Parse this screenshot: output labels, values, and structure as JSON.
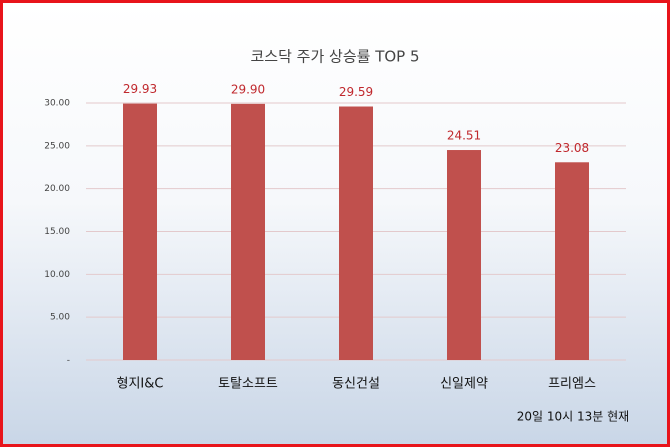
{
  "chart_data": {
    "type": "bar",
    "title": "코스닥 주가 상승률 TOP 5",
    "categories": [
      "형지I&C",
      "토탈소프트",
      "동신건설",
      "신일제약",
      "프리엠스"
    ],
    "values": [
      29.93,
      29.9,
      29.59,
      24.51,
      23.08
    ],
    "value_labels": [
      "29.93",
      "29.90",
      "29.59",
      "24.51",
      "23.08"
    ],
    "color": "#c0504d",
    "label_color": "#c0282d",
    "ylim": [
      0,
      30
    ],
    "yticks": [
      {
        "value": 0,
        "label": "-"
      },
      {
        "value": 5,
        "label": "5.00"
      },
      {
        "value": 10,
        "label": "10.00"
      },
      {
        "value": 15,
        "label": "15.00"
      },
      {
        "value": 20,
        "label": "20.00"
      },
      {
        "value": 25,
        "label": "25.00"
      },
      {
        "value": 30,
        "label": "30.00"
      }
    ],
    "grid": true,
    "annotation": "20일 10시 13분 현재"
  }
}
